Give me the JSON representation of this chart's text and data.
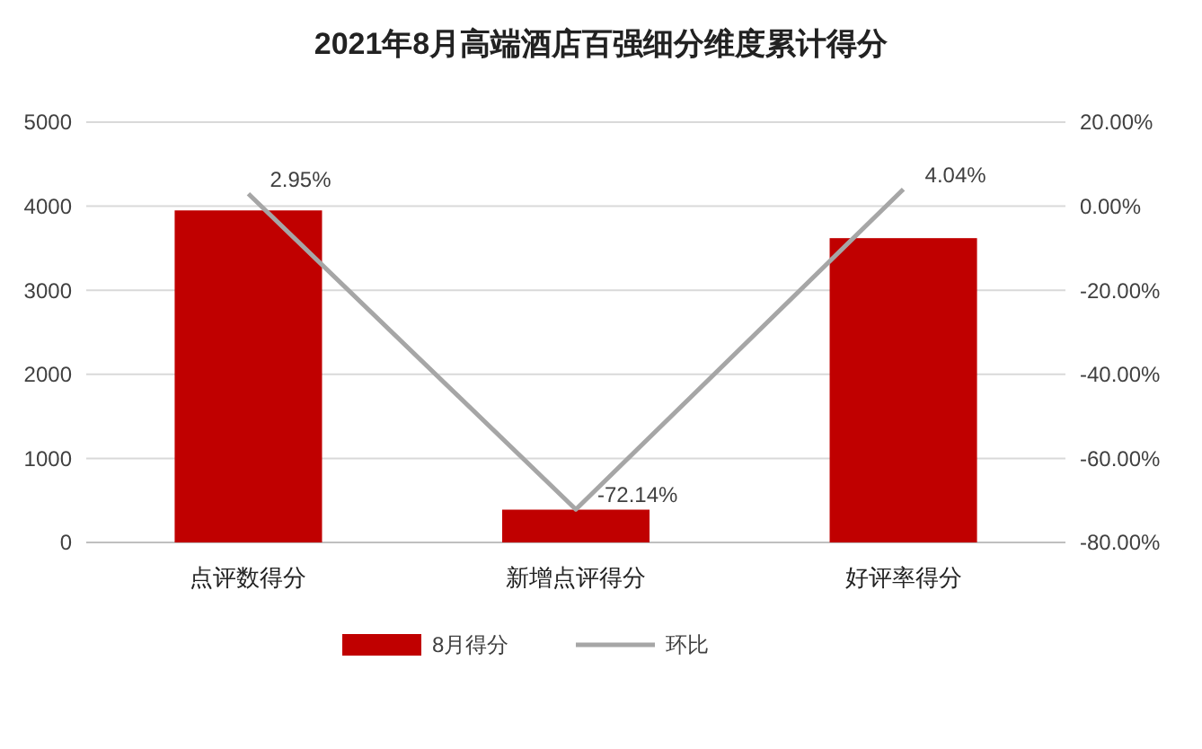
{
  "chart_data": {
    "type": "bar",
    "title": "2021年8月高端酒店百强细分维度累计得分",
    "categories": [
      "点评数得分",
      "新增点评得分",
      "好评率得分"
    ],
    "series": [
      {
        "name": "8月得分",
        "color": "#c00000",
        "values": [
          3950,
          390,
          3620
        ]
      },
      {
        "name": "环比",
        "type": "line",
        "axis": "y2",
        "color": "#a6a6a6",
        "values": [
          2.95,
          -72.14,
          4.04
        ],
        "value_labels": [
          "2.95%",
          "-72.14%",
          "4.04%"
        ]
      }
    ],
    "ylim": [
      0,
      5000
    ],
    "yticks": [
      0,
      1000,
      2000,
      3000,
      4000,
      5000
    ],
    "y2lim": [
      -80,
      20
    ],
    "y2ticks": [
      {
        "value": -80,
        "label": "-80.00%"
      },
      {
        "value": -60,
        "label": "-60.00%"
      },
      {
        "value": -40,
        "label": "-40.00%"
      },
      {
        "value": -20,
        "label": "-20.00%"
      },
      {
        "value": 0,
        "label": "0.00%"
      },
      {
        "value": 20,
        "label": "20.00%"
      }
    ],
    "grid": "y",
    "legend": "bottom",
    "marker": "none",
    "line_style": "solid"
  }
}
